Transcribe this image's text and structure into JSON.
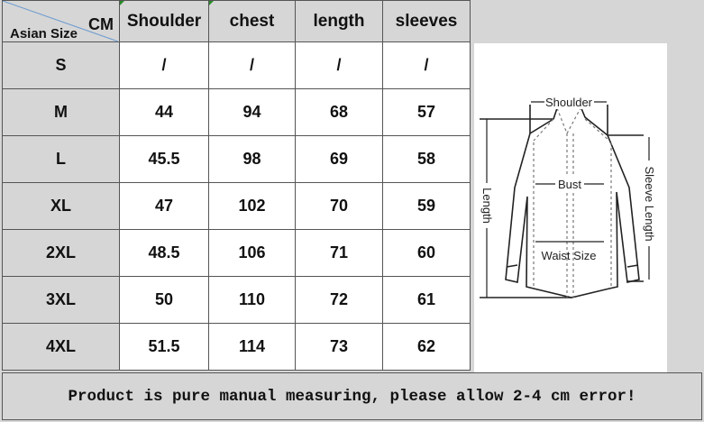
{
  "table": {
    "corner_top": "CM",
    "corner_bottom": "Asian Size",
    "headers": [
      "Shoulder",
      "chest",
      "length",
      "sleeves"
    ],
    "rows": [
      {
        "size": "S",
        "values": [
          "/",
          "/",
          "/",
          "/"
        ]
      },
      {
        "size": "M",
        "values": [
          "44",
          "94",
          "68",
          "57"
        ]
      },
      {
        "size": "L",
        "values": [
          "45.5",
          "98",
          "69",
          "58"
        ]
      },
      {
        "size": "XL",
        "values": [
          "47",
          "102",
          "70",
          "59"
        ]
      },
      {
        "size": "2XL",
        "values": [
          "48.5",
          "106",
          "71",
          "60"
        ]
      },
      {
        "size": "3XL",
        "values": [
          "50",
          "110",
          "72",
          "61"
        ]
      },
      {
        "size": "4XL",
        "values": [
          "51.5",
          "114",
          "73",
          "62"
        ]
      }
    ]
  },
  "diagram": {
    "labels": {
      "shoulder": "Shoulder",
      "bust": "Bust",
      "length": "Length",
      "sleeve": "Sleeve Length",
      "waist": "Waist Size"
    }
  },
  "footer": {
    "note": "Product is pure manual measuring, please allow 2-4 cm error!"
  }
}
